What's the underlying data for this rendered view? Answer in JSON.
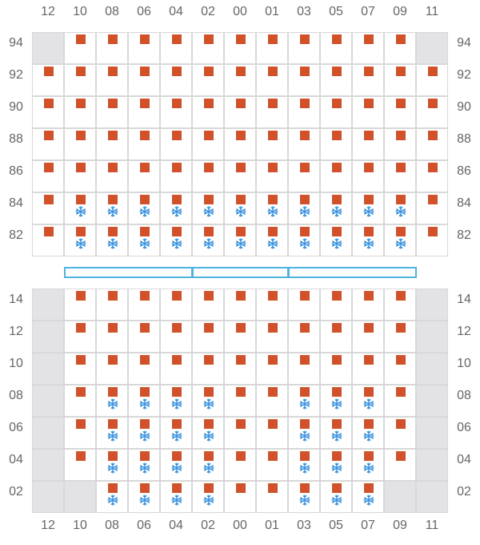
{
  "colors": {
    "occupied": "#d1522a",
    "snowflake": "#3a8fdc",
    "empty_cell": "#e3e3e6",
    "grid_line": "#d8d8d8",
    "corridor": "#4fb3e0"
  },
  "column_labels": [
    "12",
    "10",
    "08",
    "06",
    "04",
    "02",
    "00",
    "01",
    "03",
    "05",
    "07",
    "09",
    "11"
  ],
  "upper_block": {
    "rows": [
      {
        "label": "94",
        "cells": [
          "E",
          "S",
          "S",
          "S",
          "S",
          "S",
          "S",
          "S",
          "S",
          "S",
          "S",
          "S",
          "E"
        ]
      },
      {
        "label": "92",
        "cells": [
          "S",
          "S",
          "S",
          "S",
          "S",
          "S",
          "S",
          "S",
          "S",
          "S",
          "S",
          "S",
          "S"
        ]
      },
      {
        "label": "90",
        "cells": [
          "S",
          "S",
          "S",
          "S",
          "S",
          "S",
          "S",
          "S",
          "S",
          "S",
          "S",
          "S",
          "S"
        ]
      },
      {
        "label": "88",
        "cells": [
          "S",
          "S",
          "S",
          "S",
          "S",
          "S",
          "S",
          "S",
          "S",
          "S",
          "S",
          "S",
          "S"
        ]
      },
      {
        "label": "86",
        "cells": [
          "S",
          "S",
          "S",
          "S",
          "S",
          "S",
          "S",
          "S",
          "S",
          "S",
          "S",
          "S",
          "S"
        ]
      },
      {
        "label": "84",
        "cells": [
          "S",
          "SF",
          "SF",
          "SF",
          "SF",
          "SF",
          "SF",
          "SF",
          "SF",
          "SF",
          "SF",
          "SF",
          "S"
        ]
      },
      {
        "label": "82",
        "cells": [
          "S",
          "SF",
          "SF",
          "SF",
          "SF",
          "SF",
          "SF",
          "SF",
          "SF",
          "SF",
          "SF",
          "SF",
          "S"
        ]
      }
    ]
  },
  "lower_block": {
    "rows": [
      {
        "label": "14",
        "cells": [
          "E",
          "S",
          "S",
          "S",
          "S",
          "S",
          "S",
          "S",
          "S",
          "S",
          "S",
          "S",
          "E"
        ]
      },
      {
        "label": "12",
        "cells": [
          "E",
          "S",
          "S",
          "S",
          "S",
          "S",
          "S",
          "S",
          "S",
          "S",
          "S",
          "S",
          "E"
        ]
      },
      {
        "label": "10",
        "cells": [
          "E",
          "S",
          "S",
          "S",
          "S",
          "S",
          "S",
          "S",
          "S",
          "S",
          "S",
          "S",
          "E"
        ]
      },
      {
        "label": "08",
        "cells": [
          "E",
          "S",
          "SF",
          "SF",
          "SF",
          "SF",
          "S",
          "S",
          "SF",
          "SF",
          "SF",
          "S",
          "E"
        ]
      },
      {
        "label": "06",
        "cells": [
          "E",
          "S",
          "SF",
          "SF",
          "SF",
          "SF",
          "S",
          "S",
          "SF",
          "SF",
          "SF",
          "S",
          "E"
        ]
      },
      {
        "label": "04",
        "cells": [
          "E",
          "S",
          "SF",
          "SF",
          "SF",
          "SF",
          "S",
          "S",
          "SF",
          "SF",
          "SF",
          "S",
          "E"
        ]
      },
      {
        "label": "02",
        "cells": [
          "E",
          "E",
          "SF",
          "SF",
          "SF",
          "SF",
          "S",
          "S",
          "SF",
          "SF",
          "SF",
          "E",
          "E"
        ]
      }
    ]
  },
  "legend_key": {
    "E": "empty-slot",
    "S": "occupied-slot",
    "SF": "occupied-refrigerated-slot"
  }
}
